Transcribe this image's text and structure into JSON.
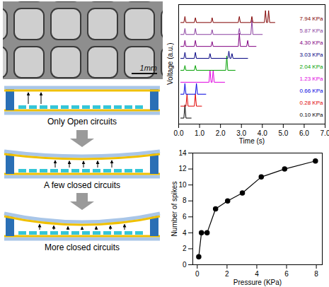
{
  "chart_data": [
    {
      "type": "line",
      "x_label": "Time (s)",
      "y_label": "Voltage (a.u.)",
      "xlim": [
        0,
        7
      ],
      "xticks": [
        0,
        1,
        2,
        3,
        4,
        5,
        6,
        7
      ],
      "ylim": [
        0,
        10
      ],
      "tick_labels": "x",
      "series": [
        {
          "name": "0.10 KPa",
          "color": "#000000",
          "x": [
            0.1,
            0.25,
            0.3,
            0.35,
            0.6
          ],
          "values": [
            0.5,
            0.5,
            1.6,
            0.5,
            0.5
          ]
        },
        {
          "name": "0.28 KPa",
          "color": "#e00000",
          "x": [
            0.1,
            0.35,
            0.4,
            0.45,
            0.75,
            0.8,
            0.85,
            1.1
          ],
          "values": [
            1.5,
            1.5,
            2.5,
            1.5,
            1.5,
            2.5,
            1.5,
            1.5
          ]
        },
        {
          "name": "0.66 KPa",
          "color": "#0000e0",
          "x": [
            0.1,
            0.25,
            0.3,
            0.35,
            0.8,
            0.85,
            0.9,
            1.3
          ],
          "values": [
            2.5,
            2.5,
            3.4,
            2.5,
            2.5,
            3.4,
            2.5,
            2.5
          ]
        },
        {
          "name": "1.23 KPa",
          "color": "#e000e0",
          "x": [
            0.1,
            1.45,
            1.5,
            1.55,
            1.6,
            1.65,
            1.7,
            2.2
          ],
          "values": [
            3.5,
            3.5,
            4.5,
            3.5,
            3.5,
            4.5,
            3.5,
            3.5
          ]
        },
        {
          "name": "2.04 KPa",
          "color": "#00a000",
          "x": [
            0.1,
            0.25,
            0.3,
            0.35,
            0.75,
            0.8,
            0.85,
            2.25,
            2.3,
            2.35,
            2.7
          ],
          "values": [
            4.5,
            4.5,
            4.9,
            4.5,
            4.5,
            4.9,
            4.5,
            4.5,
            5.7,
            4.5,
            4.5
          ]
        },
        {
          "name": "3.03 KPa",
          "color": "#000080",
          "x": [
            0.1,
            0.25,
            0.3,
            0.35,
            0.75,
            0.8,
            0.85,
            1.45,
            1.5,
            1.55,
            2.35,
            2.4,
            2.45,
            2.5,
            2.55,
            2.6,
            3.3
          ],
          "values": [
            5.5,
            5.5,
            6,
            5.5,
            5.5,
            6,
            5.5,
            5.5,
            5.9,
            5.5,
            5.5,
            6.1,
            5.5,
            5.5,
            5.9,
            5.5,
            5.5
          ]
        },
        {
          "name": "4.30 KPa",
          "color": "#800080",
          "x": [
            0.1,
            0.25,
            0.3,
            0.35,
            0.75,
            0.8,
            0.85,
            1.55,
            1.6,
            1.65,
            2.85,
            2.9,
            2.95,
            3.25,
            3.3,
            3.35,
            3.7
          ],
          "values": [
            6.5,
            6.5,
            7,
            6.5,
            6.5,
            7,
            6.5,
            6.5,
            6.9,
            6.5,
            6.5,
            7.6,
            6.5,
            6.5,
            7,
            6.5,
            6.5
          ]
        },
        {
          "name": "5.87 KPa",
          "color": "#8a3fa0",
          "x": [
            0.1,
            0.25,
            0.3,
            0.35,
            0.75,
            0.8,
            0.85,
            1.55,
            1.6,
            1.65,
            2.85,
            2.9,
            2.95,
            3.45,
            3.5,
            3.55,
            4.0
          ],
          "values": [
            7.5,
            7.5,
            8,
            7.5,
            7.5,
            8,
            7.5,
            7.5,
            7.9,
            7.5,
            7.5,
            8,
            7.5,
            7.5,
            8.7,
            7.5,
            7.5
          ]
        },
        {
          "name": "7.94 KPa",
          "color": "#800000",
          "x": [
            0.1,
            0.25,
            0.3,
            0.35,
            0.75,
            0.8,
            0.85,
            1.55,
            1.6,
            1.65,
            2.85,
            2.9,
            2.95,
            3.45,
            3.5,
            3.55,
            4.1,
            4.15,
            4.2,
            4.25,
            4.3,
            4.35,
            4.6
          ],
          "values": [
            8.5,
            8.5,
            9,
            8.5,
            8.5,
            8.9,
            8.5,
            8.5,
            8.9,
            8.5,
            8.5,
            9,
            8.5,
            8.5,
            9,
            8.5,
            8.5,
            9.5,
            8.5,
            8.5,
            9.5,
            8.5,
            8.5
          ]
        }
      ]
    },
    {
      "type": "line",
      "x_label": "Pressure (KPa)",
      "y_label": "Number of spikes",
      "xlim": [
        -0.3,
        8.4
      ],
      "xticks": [
        0,
        2,
        4,
        6,
        8
      ],
      "ylim": [
        0,
        14
      ],
      "yticks": [
        0,
        2,
        4,
        6,
        8,
        10,
        12,
        14
      ],
      "color": "#000000",
      "marker": "circle",
      "x": [
        0.1,
        0.28,
        0.66,
        1.23,
        2.04,
        3.03,
        4.3,
        5.87,
        7.94
      ],
      "values": [
        1,
        4,
        4,
        7,
        8,
        9,
        11,
        12,
        13
      ]
    }
  ],
  "image": {
    "scale_bar": "1mm"
  },
  "diagram": {
    "stages": [
      {
        "label": "Only Open circuits"
      },
      {
        "label": "A few closed circuits"
      },
      {
        "label": "More closed circuits"
      }
    ]
  }
}
